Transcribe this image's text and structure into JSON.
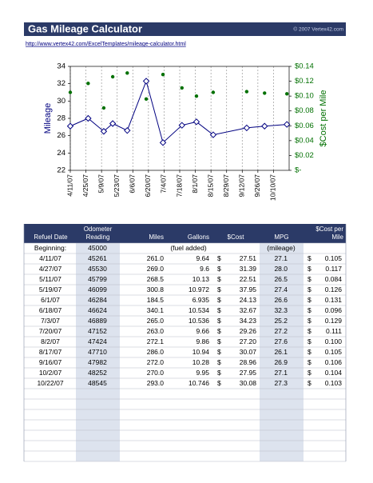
{
  "header": {
    "title": "Gas Mileage Calculator",
    "copyright": "© 2007 Vertex42.com",
    "link": "http://www.vertex42.com/ExcelTemplates/mileage-calculator.html"
  },
  "chart_data": {
    "type": "line",
    "x": [
      "4/11/07",
      "4/27/07",
      "5/11/07",
      "5/19/07",
      "6/1/07",
      "6/18/07",
      "7/3/07",
      "7/20/07",
      "8/2/07",
      "8/17/07",
      "9/16/07",
      "10/2/07",
      "10/22/07"
    ],
    "xlim": [
      "4/11/07",
      "10/24/07"
    ],
    "xticks": [
      "4/11/07",
      "4/25/07",
      "5/9/07",
      "5/23/07",
      "6/6/07",
      "6/20/07",
      "7/4/07",
      "7/18/07",
      "8/1/07",
      "8/15/07",
      "8/29/07",
      "9/12/07",
      "9/26/07",
      "10/10/07"
    ],
    "ylabel": "Mileage",
    "y2label": "$Cost per Mile",
    "ylim": [
      22,
      34
    ],
    "yticks": [
      22,
      24,
      26,
      28,
      30,
      32,
      34
    ],
    "y2lim": [
      0,
      0.14
    ],
    "y2ticks": [
      {
        "value": 0,
        "label": "$-"
      },
      {
        "value": 0.02,
        "label": "$0.02"
      },
      {
        "value": 0.04,
        "label": "$0.04"
      },
      {
        "value": 0.06,
        "label": "$0.06"
      },
      {
        "value": 0.08,
        "label": "$0.08"
      },
      {
        "value": 0.1,
        "label": "$0.10"
      },
      {
        "value": 0.12,
        "label": "$0.12"
      },
      {
        "value": 0.14,
        "label": "$0.14"
      }
    ],
    "grid": true,
    "series": [
      {
        "color": "#000080",
        "marker": "diamond",
        "values": [
          27.1,
          28.0,
          26.5,
          27.4,
          26.6,
          32.3,
          25.2,
          27.2,
          27.6,
          26.1,
          26.9,
          27.1,
          27.3
        ]
      },
      {
        "color": "#007000",
        "axis": "y2",
        "type": "scatter",
        "marker": "circle",
        "values": [
          0.105,
          0.117,
          0.084,
          0.126,
          0.131,
          0.096,
          0.129,
          0.111,
          0.1,
          0.105,
          0.106,
          0.104,
          0.103
        ]
      }
    ]
  },
  "table": {
    "columns": [
      "Refuel Date",
      "Odometer Reading",
      "Miles",
      "Gallons",
      "$Cost",
      "MPG",
      "$Cost per Mile"
    ],
    "beginning": {
      "label": "Beginning:",
      "odometer": "45000",
      "gallons_note": "(fuel added)",
      "mpg_note": "(mileage)"
    },
    "rows": [
      [
        "4/11/07",
        "45261",
        "261.0",
        "9.64",
        "$",
        "27.51",
        "27.1",
        "$",
        "0.105"
      ],
      [
        "4/27/07",
        "45530",
        "269.0",
        "9.6",
        "$",
        "31.39",
        "28.0",
        "$",
        "0.117"
      ],
      [
        "5/11/07",
        "45799",
        "268.5",
        "10.13",
        "$",
        "22.51",
        "26.5",
        "$",
        "0.084"
      ],
      [
        "5/19/07",
        "46099",
        "300.8",
        "10.972",
        "$",
        "37.95",
        "27.4",
        "$",
        "0.126"
      ],
      [
        "6/1/07",
        "46284",
        "184.5",
        "6.935",
        "$",
        "24.13",
        "26.6",
        "$",
        "0.131"
      ],
      [
        "6/18/07",
        "46624",
        "340.1",
        "10.534",
        "$",
        "32.67",
        "32.3",
        "$",
        "0.096"
      ],
      [
        "7/3/07",
        "46889",
        "265.0",
        "10.536",
        "$",
        "34.23",
        "25.2",
        "$",
        "0.129"
      ],
      [
        "7/20/07",
        "47152",
        "263.0",
        "9.66",
        "$",
        "29.26",
        "27.2",
        "$",
        "0.111"
      ],
      [
        "8/2/07",
        "47424",
        "272.1",
        "9.86",
        "$",
        "27.20",
        "27.6",
        "$",
        "0.100"
      ],
      [
        "8/17/07",
        "47710",
        "286.0",
        "10.94",
        "$",
        "30.07",
        "26.1",
        "$",
        "0.105"
      ],
      [
        "9/16/07",
        "47982",
        "272.0",
        "10.28",
        "$",
        "28.96",
        "26.9",
        "$",
        "0.106"
      ],
      [
        "10/2/07",
        "48252",
        "270.0",
        "9.95",
        "$",
        "27.95",
        "27.1",
        "$",
        "0.104"
      ],
      [
        "10/22/07",
        "48545",
        "293.0",
        "10.746",
        "$",
        "30.08",
        "27.3",
        "$",
        "0.103"
      ]
    ]
  }
}
